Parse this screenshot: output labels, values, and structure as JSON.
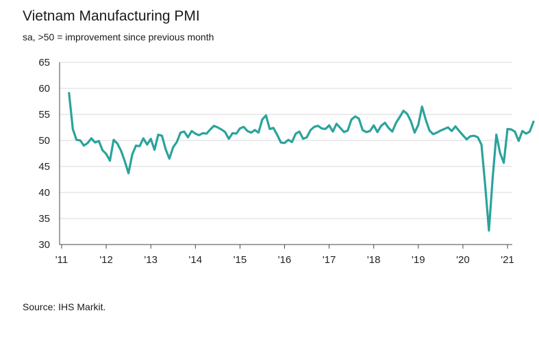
{
  "title": "Vietnam Manufacturing PMI",
  "subtitle": "sa, >50 = improvement since previous month",
  "source": "Source: IHS Markit.",
  "colors": {
    "line": "#2aa39b",
    "grid": "#d9d9d9",
    "axis": "#444444"
  },
  "chart_data": {
    "type": "line",
    "title": "Vietnam Manufacturing PMI",
    "ylim": [
      30,
      65
    ],
    "yticks": [
      "30",
      "35",
      "40",
      "45",
      "50",
      "55",
      "60",
      "65"
    ],
    "xticks": [
      "'11",
      "'12",
      "'13",
      "'14",
      "'15",
      "'16",
      "'17",
      "'18",
      "'19",
      "'20",
      "'21"
    ],
    "grid": "horizontal",
    "x_start": "2011-03",
    "series": [
      {
        "values": [
          59.1,
          52.2,
          50.1,
          50.0,
          49.0,
          49.5,
          50.4,
          49.6,
          49.9,
          48.1,
          47.4,
          46.1,
          50.1,
          49.4,
          48.0,
          46.0,
          43.7,
          47.3,
          49.0,
          48.9,
          50.4,
          49.2,
          50.3,
          48.2,
          51.1,
          50.9,
          48.3,
          46.5,
          48.7,
          49.7,
          51.5,
          51.7,
          50.6,
          51.8,
          51.3,
          51.0,
          51.4,
          51.3,
          52.1,
          52.8,
          52.5,
          52.1,
          51.6,
          50.3,
          51.4,
          51.3,
          52.3,
          52.6,
          51.8,
          51.5,
          52.0,
          51.5,
          54.0,
          54.8,
          52.2,
          52.4,
          51.1,
          49.6,
          49.5,
          50.1,
          49.7,
          51.3,
          51.7,
          50.3,
          50.6,
          52.0,
          52.6,
          52.8,
          52.3,
          52.2,
          52.9,
          51.7,
          53.2,
          52.4,
          51.6,
          51.9,
          54.0,
          54.6,
          54.2,
          52.0,
          51.6,
          51.8,
          52.9,
          51.6,
          52.8,
          53.4,
          52.4,
          51.7,
          53.4,
          54.5,
          55.7,
          55.1,
          53.7,
          51.5,
          53.0,
          56.5,
          54.0,
          51.9,
          51.2,
          51.5,
          51.9,
          52.2,
          52.5,
          51.8,
          52.7,
          51.8,
          51.0,
          50.2,
          50.8,
          50.9,
          50.6,
          49.2,
          41.4,
          32.7,
          42.7,
          51.1,
          47.6,
          45.7,
          52.2,
          52.1,
          51.7,
          49.9,
          51.8,
          51.3,
          51.7,
          53.6
        ]
      }
    ]
  }
}
